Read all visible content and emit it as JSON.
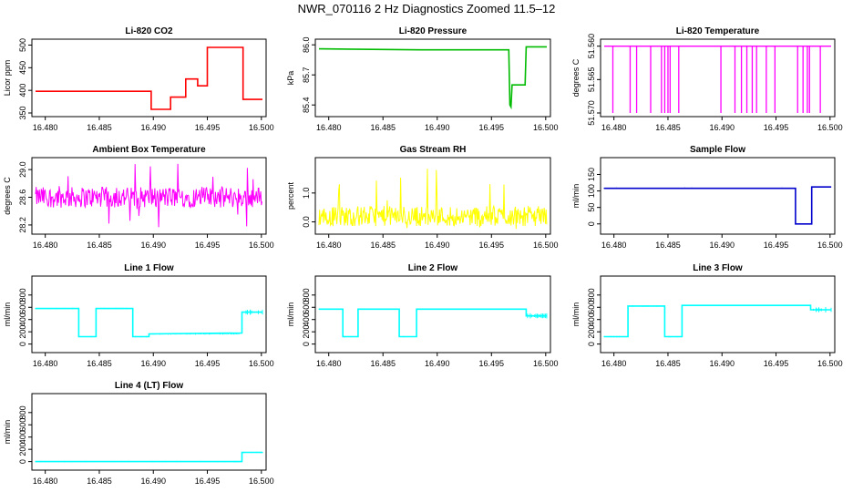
{
  "figure": {
    "title": "NWR_070116  2 Hz Diagnostics Zoomed 11.5–12"
  },
  "chart_data": [
    {
      "id": "co2",
      "type": "line",
      "title": "Li-820 CO2",
      "ylabel": "Licor ppm",
      "color": "#ff0000",
      "xlim": [
        16.4791,
        16.5001
      ],
      "ylim": [
        350,
        505
      ],
      "xticks": [
        "16.480",
        "16.485",
        "16.490",
        "16.495",
        "16.500"
      ],
      "yticks": [
        "350",
        "400",
        "450",
        "500"
      ],
      "ytick_values": [
        350,
        400,
        450,
        500
      ],
      "series": [
        {
          "x": [
            16.4791,
            16.4898,
            16.4898,
            16.4916,
            16.4916,
            16.493,
            16.493,
            16.4941,
            16.4941,
            16.495,
            16.495,
            16.4983,
            16.4983,
            16.5001
          ],
          "y": [
            398,
            398,
            358,
            358,
            385,
            385,
            425,
            425,
            410,
            410,
            495,
            495,
            380,
            380
          ]
        }
      ]
    },
    {
      "id": "pressure",
      "type": "line",
      "title": "Li-820 Pressure",
      "ylabel": "kPa",
      "color": "#00bb00",
      "xlim": [
        16.4791,
        16.5001
      ],
      "ylim": [
        85.32,
        86.02
      ],
      "xticks": [
        "16.480",
        "16.485",
        "16.490",
        "16.495",
        "16.500"
      ],
      "yticks": [
        "85.4",
        "85.7",
        "86.0"
      ],
      "ytick_values": [
        85.4,
        85.7,
        86.0
      ],
      "series": [
        {
          "x": [
            16.4791,
            16.4885,
            16.496,
            16.4966,
            16.4967,
            16.4968,
            16.4969,
            16.4981,
            16.4982,
            16.4984,
            16.5001
          ],
          "y": [
            85.96,
            85.95,
            85.95,
            85.95,
            85.4,
            85.38,
            85.6,
            85.6,
            85.98,
            85.98,
            85.98
          ]
        }
      ]
    },
    {
      "id": "temperature",
      "type": "line",
      "title": "Li-820 Temperature",
      "ylabel": "degrees C",
      "color": "#ff00ff",
      "xlim": [
        16.4791,
        16.5001
      ],
      "ylim": [
        51.57,
        51.5595
      ],
      "xticks": [
        "16.480",
        "16.485",
        "16.490",
        "16.495",
        "16.500"
      ],
      "yticks": [
        "51.570",
        "51.565",
        "51.560"
      ],
      "ytick_values": [
        51.57,
        51.565,
        51.56
      ],
      "baseline": 51.56,
      "spikes": [
        16.4799,
        16.4815,
        16.4821,
        16.4834,
        16.4844,
        16.4847,
        16.485,
        16.4852,
        16.486,
        16.4899,
        16.4912,
        16.4918,
        16.4923,
        16.4928,
        16.4932,
        16.4941,
        16.4949,
        16.497,
        16.4975,
        16.4979,
        16.4981,
        16.4991
      ],
      "spike_value": 51.57
    },
    {
      "id": "ambient",
      "type": "line",
      "title": "Ambient Box Temperature",
      "ylabel": "degrees C",
      "color": "#ff00ff",
      "xlim": [
        16.4791,
        16.5001
      ],
      "ylim": [
        28.12,
        29.12
      ],
      "xticks": [
        "16.480",
        "16.485",
        "16.490",
        "16.495",
        "16.500"
      ],
      "yticks": [
        "28.2",
        "28.6",
        "29.0"
      ],
      "ytick_values": [
        28.2,
        28.6,
        29.0
      ],
      "noise": {
        "center": 28.6,
        "half_band": 0.15,
        "spike_max": 29.1,
        "spike_min": 28.15
      }
    },
    {
      "id": "rh",
      "type": "line",
      "title": "Gas Stream RH",
      "ylabel": "percent",
      "color": "#ffff00",
      "xlim": [
        16.4791,
        16.5001
      ],
      "ylim": [
        -0.3,
        2.1
      ],
      "xticks": [
        "16.480",
        "16.485",
        "16.490",
        "16.495",
        "16.500"
      ],
      "yticks": [
        "0.0",
        "1.0"
      ],
      "ytick_values": [
        0.0,
        1.0
      ],
      "noise": {
        "center": 0.2,
        "half_band": 0.35,
        "spike_max": 1.95,
        "spike_min": -0.25
      }
    },
    {
      "id": "sample",
      "type": "line",
      "title": "Sample Flow",
      "ylabel": "ml/min",
      "color": "#0000cc",
      "xlim": [
        16.4791,
        16.5001
      ],
      "ylim": [
        -20,
        190
      ],
      "xticks": [
        "16.480",
        "16.485",
        "16.490",
        "16.495",
        "16.500"
      ],
      "yticks": [
        "0",
        "50",
        "100",
        "150"
      ],
      "ytick_values": [
        0,
        50,
        100,
        150
      ],
      "series": [
        {
          "x": [
            16.4791,
            16.4968,
            16.4968,
            16.4983,
            16.4983,
            16.5001
          ],
          "y": [
            108,
            108,
            0,
            0,
            112,
            112
          ]
        }
      ]
    },
    {
      "id": "line1",
      "type": "line",
      "title": "Line 1 Flow",
      "ylabel": "ml/min",
      "color": "#00ffff",
      "xlim": [
        16.4791,
        16.5001
      ],
      "ylim": [
        -80,
        1050
      ],
      "xticks": [
        "16.480",
        "16.485",
        "16.490",
        "16.495",
        "16.500"
      ],
      "yticks": [
        "0",
        "200",
        "400",
        "600",
        "800"
      ],
      "ytick_values": [
        0,
        200,
        400,
        600,
        800
      ],
      "series": [
        {
          "x": [
            16.4791,
            16.4831,
            16.4831,
            16.4847,
            16.4847,
            16.4881,
            16.4881,
            16.4896,
            16.4896,
            16.4982,
            16.4982,
            16.5001
          ],
          "y": [
            580,
            580,
            120,
            120,
            580,
            580,
            120,
            120,
            165,
            180,
            520,
            520
          ]
        }
      ]
    },
    {
      "id": "line2",
      "type": "line",
      "title": "Line 2 Flow",
      "ylabel": "ml/min",
      "color": "#00ffff",
      "xlim": [
        16.4791,
        16.5001
      ],
      "ylim": [
        -80,
        1050
      ],
      "xticks": [
        "16.480",
        "16.485",
        "16.490",
        "16.495",
        "16.500"
      ],
      "yticks": [
        "0",
        "200",
        "400",
        "600",
        "800"
      ],
      "ytick_values": [
        0,
        200,
        400,
        600,
        800
      ],
      "series": [
        {
          "x": [
            16.4791,
            16.4813,
            16.4813,
            16.4827,
            16.4827,
            16.4865,
            16.4865,
            16.4881,
            16.4881,
            16.4982,
            16.4982,
            16.5001
          ],
          "y": [
            570,
            570,
            120,
            120,
            570,
            570,
            120,
            120,
            570,
            570,
            460,
            460
          ]
        }
      ]
    },
    {
      "id": "line3",
      "type": "line",
      "title": "Line 3 Flow",
      "ylabel": "ml/min",
      "color": "#00ffff",
      "xlim": [
        16.4791,
        16.5001
      ],
      "ylim": [
        -80,
        1050
      ],
      "xticks": [
        "16.480",
        "16.485",
        "16.490",
        "16.495",
        "16.500"
      ],
      "yticks": [
        "0",
        "200",
        "400",
        "600",
        "800"
      ],
      "ytick_values": [
        0,
        200,
        400,
        600,
        800
      ],
      "series": [
        {
          "x": [
            16.4791,
            16.4813,
            16.4813,
            16.4847,
            16.4847,
            16.4863,
            16.4863,
            16.4982,
            16.4982,
            16.5001
          ],
          "y": [
            120,
            120,
            620,
            620,
            120,
            120,
            630,
            630,
            560,
            560
          ]
        }
      ]
    },
    {
      "id": "line4",
      "type": "line",
      "title": "Line 4 (LT) Flow",
      "ylabel": "ml/min",
      "color": "#00ffff",
      "xlim": [
        16.4791,
        16.5001
      ],
      "ylim": [
        -80,
        1050
      ],
      "xticks": [
        "16.480",
        "16.485",
        "16.490",
        "16.495",
        "16.500"
      ],
      "yticks": [
        "0",
        "200",
        "400",
        "600",
        "800"
      ],
      "ytick_values": [
        0,
        200,
        400,
        600,
        800
      ],
      "series": [
        {
          "x": [
            16.4791,
            16.4982,
            16.4982,
            16.5001
          ],
          "y": [
            0,
            0,
            150,
            150
          ]
        }
      ]
    }
  ]
}
